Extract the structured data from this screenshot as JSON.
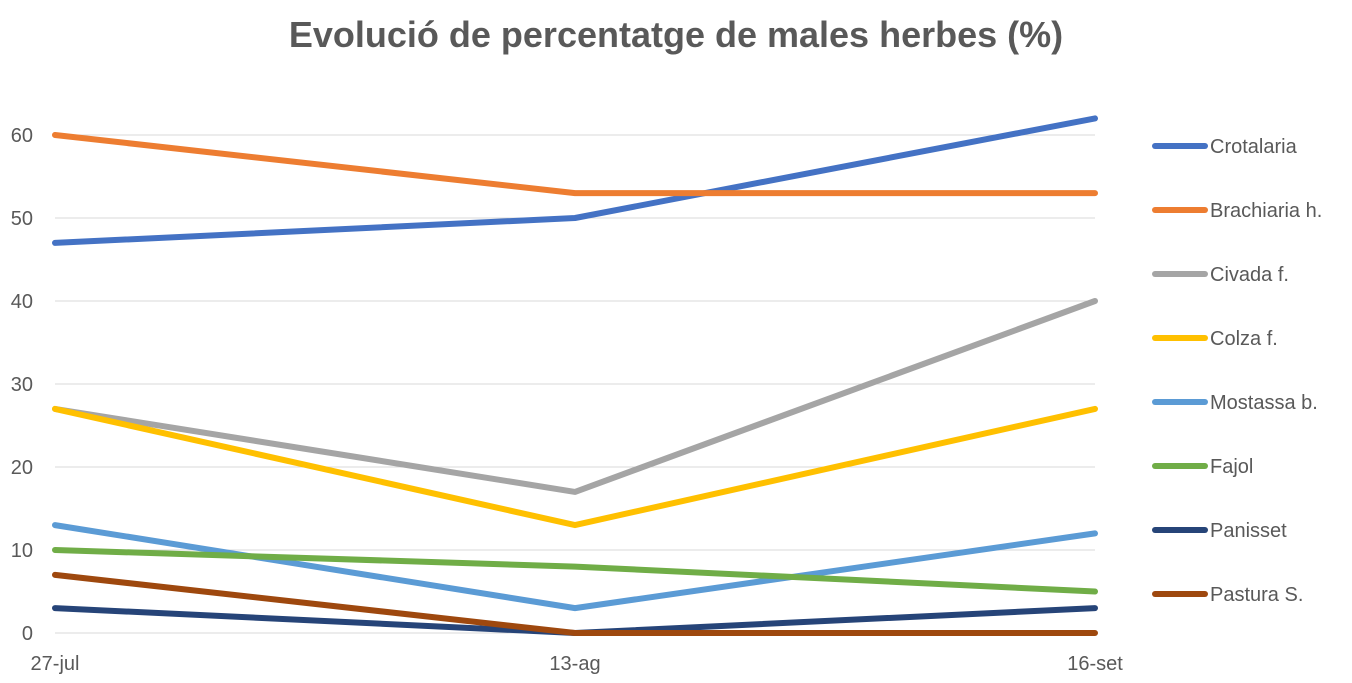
{
  "chart_data": {
    "type": "line",
    "title": "Evolució de percentatge de males herbes (%)",
    "x": [
      "27-jul",
      "13-ag",
      "16-set"
    ],
    "ylim": [
      0,
      60
    ],
    "yticks": [
      0,
      10,
      20,
      30,
      40,
      50,
      60
    ],
    "grid": true,
    "legend_position": "right",
    "series": [
      {
        "name": "Crotalaria",
        "color": "#4472C4",
        "values": [
          47,
          50,
          62
        ]
      },
      {
        "name": "Brachiaria h.",
        "color": "#ED7D31",
        "values": [
          60,
          53,
          53
        ]
      },
      {
        "name": "Civada f.",
        "color": "#A5A5A5",
        "values": [
          27,
          17,
          40
        ]
      },
      {
        "name": "Colza f.",
        "color": "#FFC000",
        "values": [
          27,
          13,
          27
        ]
      },
      {
        "name": "Mostassa b.",
        "color": "#5B9BD5",
        "values": [
          13,
          3,
          12
        ]
      },
      {
        "name": "Fajol",
        "color": "#70AD47",
        "values": [
          10,
          8,
          5
        ]
      },
      {
        "name": "Panisset",
        "color": "#264478",
        "values": [
          3,
          0,
          3
        ]
      },
      {
        "name": "Pastura S.",
        "color": "#9E480E",
        "values": [
          7,
          0,
          0
        ]
      }
    ]
  }
}
